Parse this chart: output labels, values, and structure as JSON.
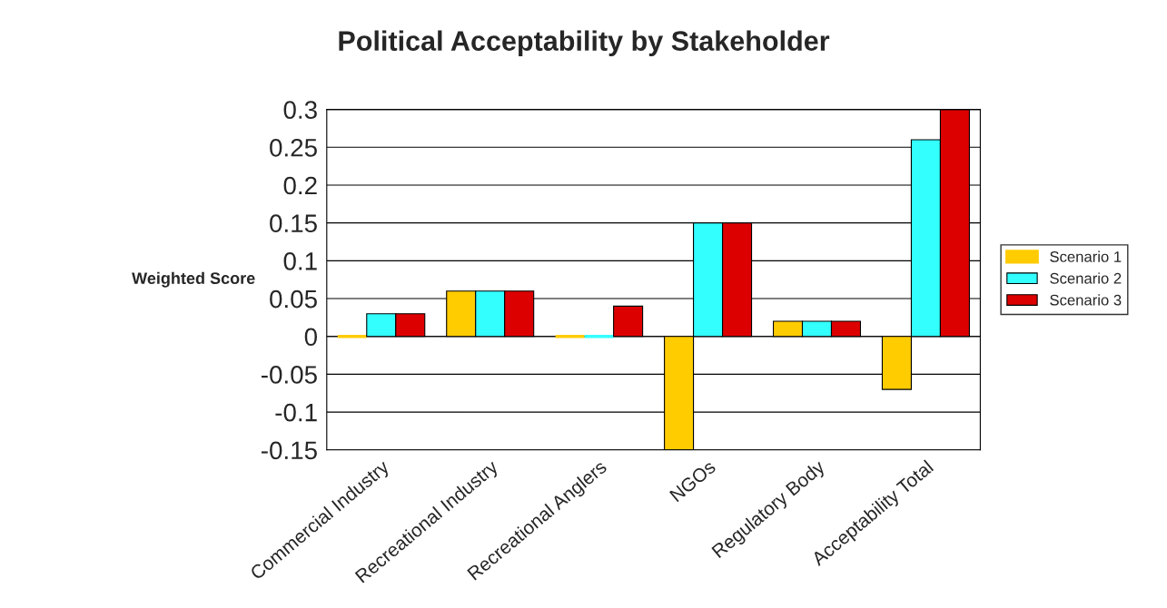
{
  "chart_data": {
    "type": "bar",
    "title": "Political Acceptability by Stakeholder",
    "ylabel": "Weighted Score",
    "categories": [
      "Commercial Industry",
      "Recreational Industry",
      "Recreational Anglers",
      "NGOs",
      "Regulatory Body",
      "Acceptability Total"
    ],
    "series": [
      {
        "name": "Scenario 1",
        "color": "#ffcc00",
        "values": [
          0,
          0.06,
          0,
          -0.15,
          0.02,
          -0.07
        ]
      },
      {
        "name": "Scenario 2",
        "color": "#33ffff",
        "values": [
          0.03,
          0.06,
          0,
          0.15,
          0.02,
          0.26
        ]
      },
      {
        "name": "Scenario 3",
        "color": "#dd0000",
        "values": [
          0.03,
          0.06,
          0.04,
          0.15,
          0.02,
          0.3
        ]
      }
    ],
    "ylim": [
      -0.15,
      0.3
    ],
    "yticks": [
      -0.15,
      -0.1,
      -0.05,
      0,
      0.05,
      0.1,
      0.15,
      0.2,
      0.25,
      0.3
    ],
    "grid": "y",
    "legend": "right"
  }
}
